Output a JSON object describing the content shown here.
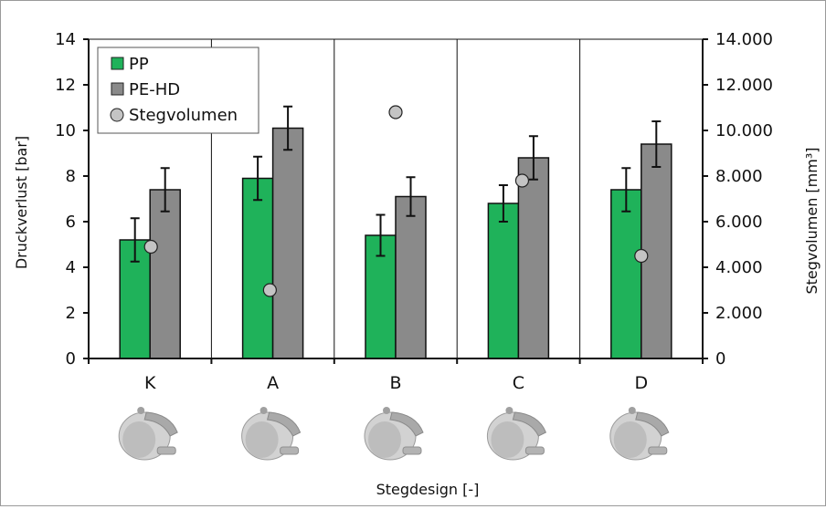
{
  "chart_data": {
    "type": "bar",
    "categories": [
      "K",
      "A",
      "B",
      "C",
      "D"
    ],
    "xlabel": "Stegdesign [-]",
    "ylabel": "Druckverlust [bar]",
    "y2label": "Stegvolumen [mm³]",
    "ylim": [
      0,
      14
    ],
    "y2lim": [
      0,
      14000
    ],
    "yticks": [
      "0",
      "2",
      "4",
      "6",
      "8",
      "10",
      "12",
      "14"
    ],
    "y2ticks": [
      "0",
      "2.000",
      "4.000",
      "6.000",
      "8.000",
      "10.000",
      "12.000",
      "14.000"
    ],
    "grid": "vertical",
    "legend_position": "top-left",
    "series": [
      {
        "name": "PP",
        "kind": "bar",
        "axis": "left",
        "color": "#1fb25a",
        "values": [
          5.2,
          7.9,
          5.4,
          6.8,
          7.4
        ],
        "errors": [
          0.95,
          0.95,
          0.9,
          0.8,
          0.95
        ]
      },
      {
        "name": "PE-HD",
        "kind": "bar",
        "axis": "left",
        "color": "#8a8a8a",
        "values": [
          7.4,
          10.1,
          7.1,
          8.8,
          9.4
        ],
        "errors": [
          0.95,
          0.95,
          0.85,
          0.95,
          1.0
        ]
      },
      {
        "name": "Stegvolumen",
        "kind": "scatter",
        "axis": "right",
        "color": "#c4c4c4",
        "values": [
          4900,
          3000,
          10800,
          7800,
          4500
        ]
      }
    ]
  }
}
